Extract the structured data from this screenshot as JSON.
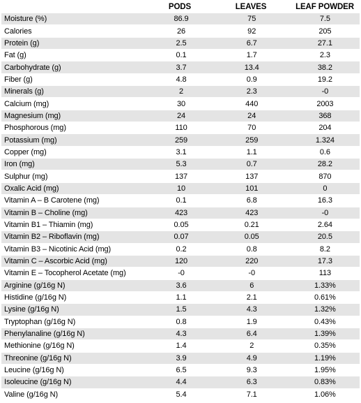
{
  "headers": [
    "",
    "PODS",
    "LEAVES",
    "LEAF POWDER"
  ],
  "rows": [
    [
      "Moisture (%)",
      "86.9",
      "75",
      "7.5"
    ],
    [
      "Calories",
      "26",
      "92",
      "205"
    ],
    [
      "Protein (g)",
      "2.5",
      "6.7",
      "27.1"
    ],
    [
      "Fat (g)",
      "0.1",
      "1.7",
      "2.3"
    ],
    [
      "Carbohydrate (g)",
      "3.7",
      "13.4",
      "38.2"
    ],
    [
      "Fiber (g)",
      "4.8",
      "0.9",
      "19.2"
    ],
    [
      "Minerals (g)",
      "2",
      "2.3",
      "-0"
    ],
    [
      "Calcium (mg)",
      "30",
      "440",
      "2003"
    ],
    [
      "Magnesium (mg)",
      "24",
      "24",
      "368"
    ],
    [
      "Phosphorous (mg)",
      "110",
      "70",
      "204"
    ],
    [
      "Potassium (mg)",
      "259",
      "259",
      "1.324"
    ],
    [
      "Copper (mg)",
      "3.1",
      "1.1",
      "0.6"
    ],
    [
      "Iron (mg)",
      "5.3",
      "0.7",
      "28.2"
    ],
    [
      "Sulphur  (mg)",
      "137",
      "137",
      "870"
    ],
    [
      "Oxalic Acid (mg)",
      "10",
      "101",
      "0"
    ],
    [
      "Vitamin A – B Carotene (mg)",
      "0.1",
      "6.8",
      "16.3"
    ],
    [
      "Vitamin B – Choline (mg)",
      "423",
      "423",
      "-0"
    ],
    [
      "Vitamin B1 – Thiamin (mg)",
      "0.05",
      "0.21",
      "2.64"
    ],
    [
      "Vitamin B2 – Riboflavin (mg)",
      "0.07",
      "0.05",
      "20.5"
    ],
    [
      "Vitamin B3 – Nicotinic Acid (mg)",
      "0.2",
      "0.8",
      "8.2"
    ],
    [
      "Vitamin C – Ascorbic Acid (mg)",
      "120",
      "220",
      "17.3"
    ],
    [
      "Vitamin E – Tocopherol Acetate (mg)",
      "-0",
      "-0",
      "113"
    ],
    [
      "Arginine (g/16g N)",
      "3.6",
      "6",
      "1.33%"
    ],
    [
      "Histidine (g/16g N)",
      "1.1",
      "2.1",
      "0.61%"
    ],
    [
      "Lysine (g/16g N)",
      "1.5",
      "4.3",
      "1.32%"
    ],
    [
      "Tryptophan (g/16g N)",
      "0.8",
      "1.9",
      "0.43%"
    ],
    [
      "Phenylanaline (g/16g N)",
      "4.3",
      "6.4",
      "1.39%"
    ],
    [
      "Methionine (g/16g N)",
      "1.4",
      "2",
      "0.35%"
    ],
    [
      "Threonine (g/16g N)",
      "3.9",
      "4.9",
      "1.19%"
    ],
    [
      "Leucine (g/16g N)",
      "6.5",
      "9.3",
      "1.95%"
    ],
    [
      "Isoleucine (g/16g N)",
      "4.4",
      "6.3",
      "0.83%"
    ],
    [
      "Valine (g/16g N)",
      "5.4",
      "7.1",
      "1.06%"
    ]
  ]
}
